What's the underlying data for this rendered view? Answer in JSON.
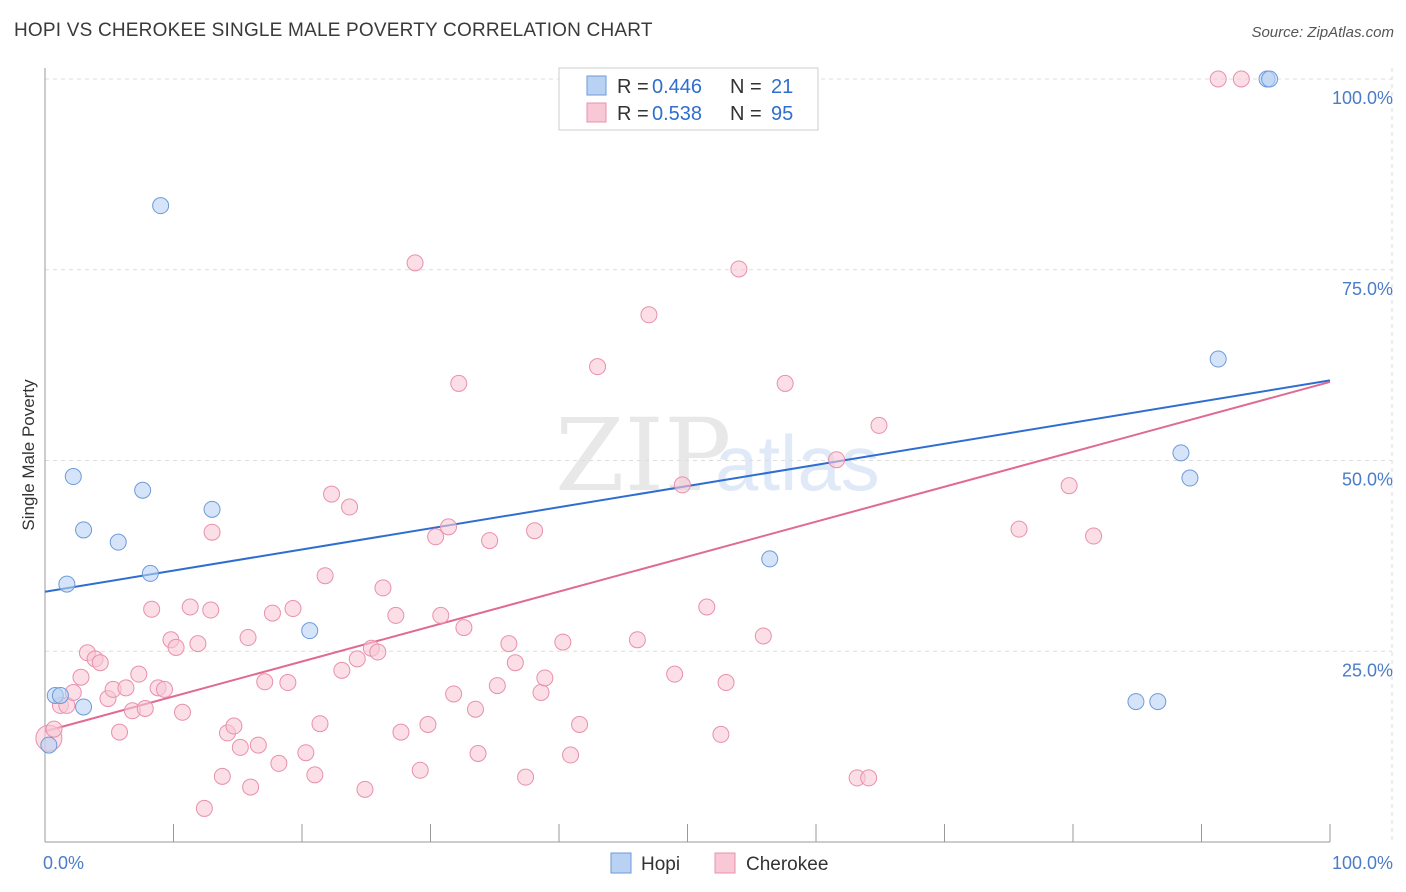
{
  "title": "HOPI VS CHEROKEE SINGLE MALE POVERTY CORRELATION CHART",
  "source": "Source: ZipAtlas.com",
  "watermark": {
    "zip": "ZIP",
    "atlas": "atlas"
  },
  "colors": {
    "hopi_fill": "#b9d2f3",
    "hopi_stroke": "#6e9ad8",
    "hopi_line": "#2f6ed0",
    "cherokee_fill": "#f8c8d6",
    "cherokee_stroke": "#e890ad",
    "cherokee_line": "#e06a93",
    "axis_label": "#4a7cc8",
    "grid": "#dddddd"
  },
  "legend": {
    "rows": [
      {
        "r_label": "R = ",
        "r_value": "0.446",
        "n_label": "N = ",
        "n_value": "21"
      },
      {
        "r_label": "R = ",
        "r_value": "0.538",
        "n_label": "N = ",
        "n_value": "95"
      }
    ]
  },
  "chart_data": {
    "type": "scatter",
    "title": "HOPI VS CHEROKEE SINGLE MALE POVERTY CORRELATION CHART",
    "xlabel": "",
    "ylabel": "Single Male Poverty",
    "xlim": [
      0,
      100
    ],
    "ylim": [
      0,
      100
    ],
    "x_tick_labels": [
      "0.0%",
      "100.0%"
    ],
    "y_ticks": [
      25,
      50,
      75,
      100
    ],
    "y_tick_labels": [
      "25.0%",
      "50.0%",
      "75.0%",
      "100.0%"
    ],
    "grid": true,
    "legend_position": "top-center",
    "series": [
      {
        "name": "Hopi",
        "r": 0.446,
        "n": 21,
        "trend": [
          [
            0,
            32.8
          ],
          [
            100,
            60.5
          ]
        ],
        "points": [
          [
            0.3,
            12.7
          ],
          [
            0.8,
            19.2
          ],
          [
            1.2,
            19.2
          ],
          [
            1.7,
            33.8
          ],
          [
            2.2,
            47.9
          ],
          [
            3.0,
            40.9
          ],
          [
            3.0,
            17.7
          ],
          [
            5.7,
            39.3
          ],
          [
            7.6,
            46.1
          ],
          [
            8.2,
            35.2
          ],
          [
            9.0,
            83.4
          ],
          [
            13.0,
            43.6
          ],
          [
            20.6,
            27.7
          ],
          [
            56.4,
            37.1
          ],
          [
            84.9,
            18.4
          ],
          [
            86.6,
            18.4
          ],
          [
            88.4,
            51.0
          ],
          [
            89.1,
            47.7
          ],
          [
            91.3,
            63.3
          ],
          [
            95.1,
            100
          ],
          [
            95.3,
            100
          ]
        ]
      },
      {
        "name": "Cherokee",
        "r": 0.538,
        "n": 95,
        "trend": [
          [
            0,
            14.5
          ],
          [
            100,
            60.3
          ]
        ],
        "points": [
          [
            0.3,
            13.6
          ],
          [
            0.7,
            14.8
          ],
          [
            1.2,
            17.9
          ],
          [
            1.7,
            17.9
          ],
          [
            2.2,
            19.6
          ],
          [
            2.8,
            21.6
          ],
          [
            3.3,
            24.8
          ],
          [
            3.9,
            24.0
          ],
          [
            4.3,
            23.5
          ],
          [
            4.9,
            18.8
          ],
          [
            5.3,
            20.0
          ],
          [
            5.8,
            14.4
          ],
          [
            6.3,
            20.2
          ],
          [
            6.8,
            17.2
          ],
          [
            7.3,
            22.0
          ],
          [
            7.8,
            17.5
          ],
          [
            8.3,
            30.5
          ],
          [
            8.8,
            20.2
          ],
          [
            9.3,
            20.0
          ],
          [
            9.8,
            26.5
          ],
          [
            10.2,
            25.5
          ],
          [
            10.7,
            17.0
          ],
          [
            11.3,
            30.8
          ],
          [
            11.9,
            26.0
          ],
          [
            12.4,
            4.4
          ],
          [
            12.9,
            30.4
          ],
          [
            13.0,
            40.6
          ],
          [
            13.8,
            8.6
          ],
          [
            14.2,
            14.3
          ],
          [
            14.7,
            15.2
          ],
          [
            15.2,
            12.4
          ],
          [
            15.8,
            26.8
          ],
          [
            16.0,
            7.2
          ],
          [
            16.6,
            12.7
          ],
          [
            17.1,
            21.0
          ],
          [
            17.7,
            30.0
          ],
          [
            18.2,
            10.3
          ],
          [
            18.9,
            20.9
          ],
          [
            19.3,
            30.6
          ],
          [
            20.3,
            11.7
          ],
          [
            21.0,
            8.8
          ],
          [
            21.4,
            15.5
          ],
          [
            21.8,
            34.9
          ],
          [
            22.3,
            45.6
          ],
          [
            23.1,
            22.5
          ],
          [
            23.7,
            43.9
          ],
          [
            24.3,
            24.0
          ],
          [
            24.9,
            6.9
          ],
          [
            25.4,
            25.4
          ],
          [
            25.9,
            24.9
          ],
          [
            26.3,
            33.3
          ],
          [
            27.3,
            29.7
          ],
          [
            27.7,
            14.4
          ],
          [
            28.8,
            75.9
          ],
          [
            29.2,
            9.4
          ],
          [
            29.8,
            15.4
          ],
          [
            30.4,
            40.0
          ],
          [
            30.8,
            29.7
          ],
          [
            31.4,
            41.3
          ],
          [
            31.8,
            19.4
          ],
          [
            32.2,
            60.1
          ],
          [
            32.6,
            28.1
          ],
          [
            33.5,
            17.4
          ],
          [
            33.7,
            11.6
          ],
          [
            34.6,
            39.5
          ],
          [
            35.2,
            20.5
          ],
          [
            36.1,
            26.0
          ],
          [
            36.6,
            23.5
          ],
          [
            37.4,
            8.5
          ],
          [
            38.1,
            40.8
          ],
          [
            38.6,
            19.6
          ],
          [
            38.9,
            21.5
          ],
          [
            40.3,
            26.2
          ],
          [
            40.9,
            11.4
          ],
          [
            41.6,
            15.4
          ],
          [
            43.0,
            62.3
          ],
          [
            46.1,
            26.5
          ],
          [
            47.0,
            69.1
          ],
          [
            49.0,
            22.0
          ],
          [
            49.6,
            46.8
          ],
          [
            51.5,
            30.8
          ],
          [
            52.6,
            14.1
          ],
          [
            53.0,
            20.9
          ],
          [
            54.0,
            75.1
          ],
          [
            55.9,
            27.0
          ],
          [
            57.6,
            60.1
          ],
          [
            61.6,
            50.1
          ],
          [
            63.2,
            8.4
          ],
          [
            64.1,
            8.4
          ],
          [
            64.9,
            54.6
          ],
          [
            75.8,
            41.0
          ],
          [
            79.7,
            46.7
          ],
          [
            81.6,
            40.1
          ],
          [
            91.3,
            100
          ],
          [
            93.1,
            100
          ]
        ]
      }
    ]
  }
}
